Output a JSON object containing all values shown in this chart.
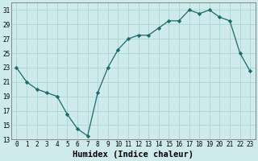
{
  "x": [
    0,
    1,
    2,
    3,
    4,
    5,
    6,
    7,
    8,
    9,
    10,
    11,
    12,
    13,
    14,
    15,
    16,
    17,
    18,
    19,
    20,
    21,
    22,
    23
  ],
  "y": [
    23,
    21,
    20,
    19.5,
    19,
    16.5,
    14.5,
    13.5,
    19.5,
    23,
    25.5,
    27,
    27.5,
    27.5,
    28.5,
    29.5,
    29.5,
    31,
    30.5,
    31,
    30,
    29.5,
    25,
    22.5
  ],
  "line_color": "#1a6b6b",
  "marker": "D",
  "marker_size": 2.2,
  "bg_color": "#ceeaea",
  "grid_color": "#aad4d4",
  "xlabel": "Humidex (Indice chaleur)",
  "xlim": [
    -0.5,
    23.5
  ],
  "ylim": [
    13,
    32
  ],
  "yticks": [
    13,
    15,
    17,
    19,
    21,
    23,
    25,
    27,
    29,
    31
  ],
  "xticks": [
    0,
    1,
    2,
    3,
    4,
    5,
    6,
    7,
    8,
    9,
    10,
    11,
    12,
    13,
    14,
    15,
    16,
    17,
    18,
    19,
    20,
    21,
    22,
    23
  ],
  "xlabel_fontsize": 7.5,
  "tick_fontsize": 5.5
}
